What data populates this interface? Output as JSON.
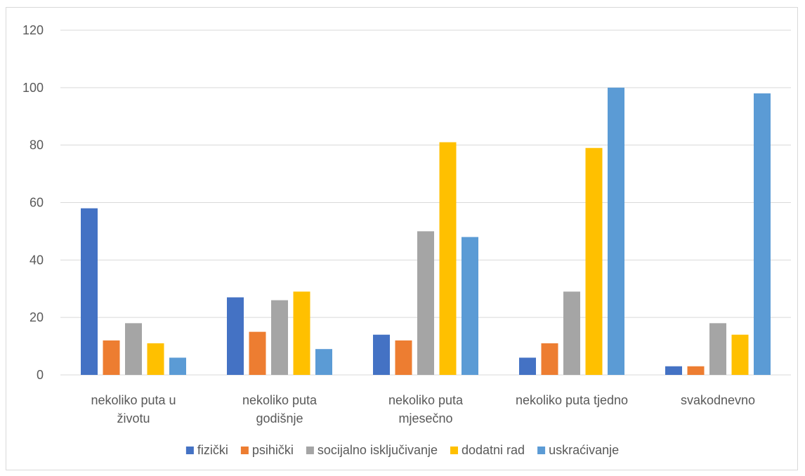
{
  "chart_data": {
    "type": "bar",
    "categories": [
      [
        "nekoliko puta u",
        "životu"
      ],
      [
        "nekoliko puta",
        "godišnje"
      ],
      [
        "nekoliko puta",
        "mjesečno"
      ],
      [
        "nekoliko puta tjedno"
      ],
      [
        "svakodnevno"
      ]
    ],
    "series": [
      {
        "name": "fizički",
        "color": "#4472C4",
        "values": [
          58,
          27,
          14,
          6,
          3
        ]
      },
      {
        "name": "psihički",
        "color": "#ED7D31",
        "values": [
          12,
          15,
          12,
          11,
          3
        ]
      },
      {
        "name": "socijalno isključivanje",
        "color": "#A5A5A5",
        "values": [
          18,
          26,
          50,
          29,
          18
        ]
      },
      {
        "name": "dodatni rad",
        "color": "#FFC000",
        "values": [
          11,
          29,
          81,
          79,
          14
        ]
      },
      {
        "name": "uskraćivanje",
        "color": "#5B9BD5",
        "values": [
          6,
          9,
          48,
          100,
          98
        ]
      }
    ],
    "yticks": [
      "0",
      "20",
      "40",
      "60",
      "80",
      "100",
      "120"
    ],
    "ylim": [
      0,
      120
    ],
    "grid": true,
    "legend_position": "bottom",
    "gridline_color": "#d9d9d9"
  }
}
